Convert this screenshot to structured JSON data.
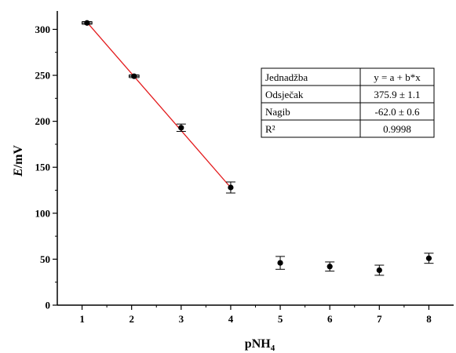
{
  "chart_data": {
    "type": "scatter",
    "xlabel": "pNH",
    "xlabel_subscript": "4",
    "ylabel_italic": "E",
    "ylabel_rest": "/mV",
    "xlim": [
      0.5,
      8.5
    ],
    "ylim": [
      0,
      320
    ],
    "x_ticks": [
      1,
      2,
      3,
      4,
      5,
      6,
      7,
      8
    ],
    "y_ticks": [
      0,
      50,
      100,
      150,
      200,
      250,
      300
    ],
    "grid": false,
    "series": [
      {
        "marker_color": "#000000",
        "points": [
          {
            "x": 1.1,
            "y": 307,
            "yerr": 1.5,
            "xerr": 0.1
          },
          {
            "x": 2.05,
            "y": 249,
            "yerr": 1.5,
            "xerr": 0.1
          },
          {
            "x": 3.0,
            "y": 193,
            "yerr": 4
          },
          {
            "x": 4.0,
            "y": 128,
            "yerr": 6
          },
          {
            "x": 5.0,
            "y": 46,
            "yerr": 7
          },
          {
            "x": 6.0,
            "y": 42,
            "yerr": 5
          },
          {
            "x": 7.0,
            "y": 38,
            "yerr": 5.5
          },
          {
            "x": 8.0,
            "y": 51,
            "yerr": 5.5
          }
        ]
      }
    ],
    "fit_line": {
      "color": "#e31a1c",
      "x_range": [
        1.1,
        4.0
      ],
      "intercept": 375.9,
      "slope": -62.0
    },
    "fit_table": [
      {
        "label": "Jednadžba",
        "value": "y = a + b*x"
      },
      {
        "label": "Odsječak",
        "value": "375.9 ± 1.1"
      },
      {
        "label": "Nagib",
        "value": "-62.0 ± 0.6"
      },
      {
        "label": "R²",
        "value": "0.9998"
      }
    ]
  }
}
